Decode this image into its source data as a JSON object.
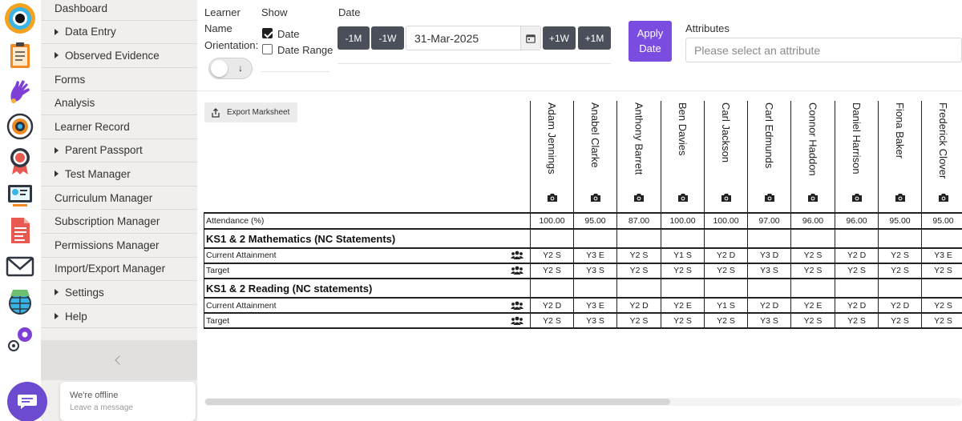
{
  "rail": {
    "icons": [
      "logo-icon",
      "clipboard-icon",
      "hand-icon",
      "target-icon",
      "award-icon",
      "presentation-icon",
      "document-icon",
      "mail-icon",
      "globe-icon",
      "gears-icon"
    ]
  },
  "sidebar": {
    "items": [
      {
        "label": "Dashboard",
        "expandable": false
      },
      {
        "label": "Data Entry",
        "expandable": true
      },
      {
        "label": "Observed Evidence",
        "expandable": true
      },
      {
        "label": "Forms",
        "expandable": false
      },
      {
        "label": "Analysis",
        "expandable": false
      },
      {
        "label": "Learner Record",
        "expandable": false
      },
      {
        "label": "Parent Passport",
        "expandable": true
      },
      {
        "label": "Test Manager",
        "expandable": true
      },
      {
        "label": "Curriculum Manager",
        "expandable": false
      },
      {
        "label": "Subscription Manager",
        "expandable": false
      },
      {
        "label": "Permissions Manager",
        "expandable": false
      },
      {
        "label": "Import/Export Manager",
        "expandable": false
      },
      {
        "label": "Settings",
        "expandable": true
      },
      {
        "label": "Help",
        "expandable": true
      }
    ]
  },
  "chat": {
    "status": "We're offline",
    "prompt": "Leave a message",
    "accent": "#6c4bd1"
  },
  "filters": {
    "learner_label_1": "Learner",
    "learner_label_2": "Name",
    "learner_label_3": "Orientation:",
    "show_label": "Show",
    "show_date": "Date",
    "show_date_checked": true,
    "show_date_range": "Date Range",
    "show_date_range_checked": false,
    "date_label": "Date",
    "minus_month": "-1M",
    "minus_week": "-1W",
    "date_value": "31-Mar-2025",
    "plus_week": "+1W",
    "plus_month": "+1M",
    "apply_line1": "Apply",
    "apply_line2": "Date",
    "apply_color": "#7a4de0",
    "attributes_label": "Attributes",
    "attributes_placeholder": "Please select an attribute"
  },
  "marksheet": {
    "export_label": "Export Marksheet",
    "learners": [
      "Adam Jennings",
      "Anabel Clarke",
      "Anthony Barrett",
      "Ben Davies",
      "Carl Jackson",
      "Carl Edmunds",
      "Connor Haddon",
      "Daniel Harrison",
      "Fiona Baker",
      "Frederick Clover"
    ],
    "attendance_label": "Attendance (%)",
    "attendance": [
      "100.00",
      "95.00",
      "87.00",
      "100.00",
      "100.00",
      "97.00",
      "96.00",
      "96.00",
      "95.00",
      "95.00"
    ],
    "sections": [
      {
        "title": "KS1 & 2 Mathematics (NC Statements)",
        "rows": [
          {
            "label": "Current Attainment",
            "values": [
              "Y2 S",
              "Y3 E",
              "Y2 S",
              "Y1 S",
              "Y2 D",
              "Y3 D",
              "Y2 S",
              "Y2 D",
              "Y2 S",
              "Y3 E"
            ]
          },
          {
            "label": "Target",
            "values": [
              "Y2 S",
              "Y3 S",
              "Y2 S",
              "Y2 S",
              "Y2 S",
              "Y3 S",
              "Y2 S",
              "Y2 S",
              "Y2 S",
              "Y2 S"
            ]
          }
        ]
      },
      {
        "title": "KS1 & 2 Reading (NC statements)",
        "rows": [
          {
            "label": "Current Attainment",
            "values": [
              "Y2 D",
              "Y3 E",
              "Y2 D",
              "Y2 E",
              "Y1 S",
              "Y2 D",
              "Y2 E",
              "Y2 D",
              "Y2 D",
              "Y2 S"
            ]
          },
          {
            "label": "Target",
            "values": [
              "Y2 S",
              "Y3 S",
              "Y2 S",
              "Y2 S",
              "Y2 S",
              "Y3 S",
              "Y2 S",
              "Y2 S",
              "Y2 S",
              "Y2 S"
            ]
          }
        ]
      }
    ]
  }
}
